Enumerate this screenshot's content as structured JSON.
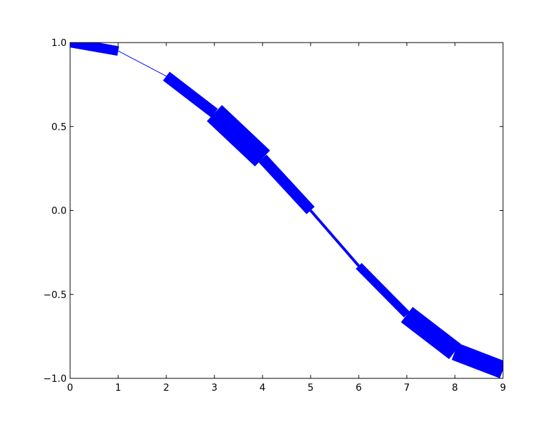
{
  "chart_data": {
    "type": "line",
    "title": "",
    "xlabel": "",
    "ylabel": "",
    "xlim": [
      0,
      9
    ],
    "ylim": [
      -1.0,
      1.0
    ],
    "grid": false,
    "legend": "none",
    "x_ticks": [
      0,
      1,
      2,
      3,
      4,
      5,
      6,
      7,
      8,
      9
    ],
    "x_tick_labels": [
      "0",
      "1",
      "2",
      "3",
      "4",
      "5",
      "6",
      "7",
      "8",
      "9"
    ],
    "y_ticks": [
      1.0,
      0.5,
      0.0,
      -0.5,
      -1.0
    ],
    "y_tick_labels": [
      "1.0",
      "0.5",
      "0.0",
      "−0.5",
      "−1.0"
    ],
    "line_color": "#0000ff",
    "segments": [
      {
        "x0": 0,
        "y0": 1.0,
        "x1": 1,
        "y1": 0.95,
        "width": 14
      },
      {
        "x0": 1,
        "y0": 0.95,
        "x1": 2,
        "y1": 0.8,
        "width": 1
      },
      {
        "x0": 2,
        "y0": 0.8,
        "x1": 3,
        "y1": 0.58,
        "width": 16
      },
      {
        "x0": 3,
        "y0": 0.58,
        "x1": 4,
        "y1": 0.31,
        "width": 32
      },
      {
        "x0": 4,
        "y0": 0.31,
        "x1": 5,
        "y1": 0.0,
        "width": 16
      },
      {
        "x0": 5,
        "y0": 0.0,
        "x1": 6,
        "y1": -0.33,
        "width": 4
      },
      {
        "x0": 6,
        "y0": -0.33,
        "x1": 7,
        "y1": -0.62,
        "width": 12
      },
      {
        "x0": 7,
        "y0": -0.62,
        "x1": 8,
        "y1": -0.84,
        "width": 28
      },
      {
        "x0": 8,
        "y0": -0.84,
        "x1": 9,
        "y1": -0.95,
        "width": 26
      }
    ]
  }
}
